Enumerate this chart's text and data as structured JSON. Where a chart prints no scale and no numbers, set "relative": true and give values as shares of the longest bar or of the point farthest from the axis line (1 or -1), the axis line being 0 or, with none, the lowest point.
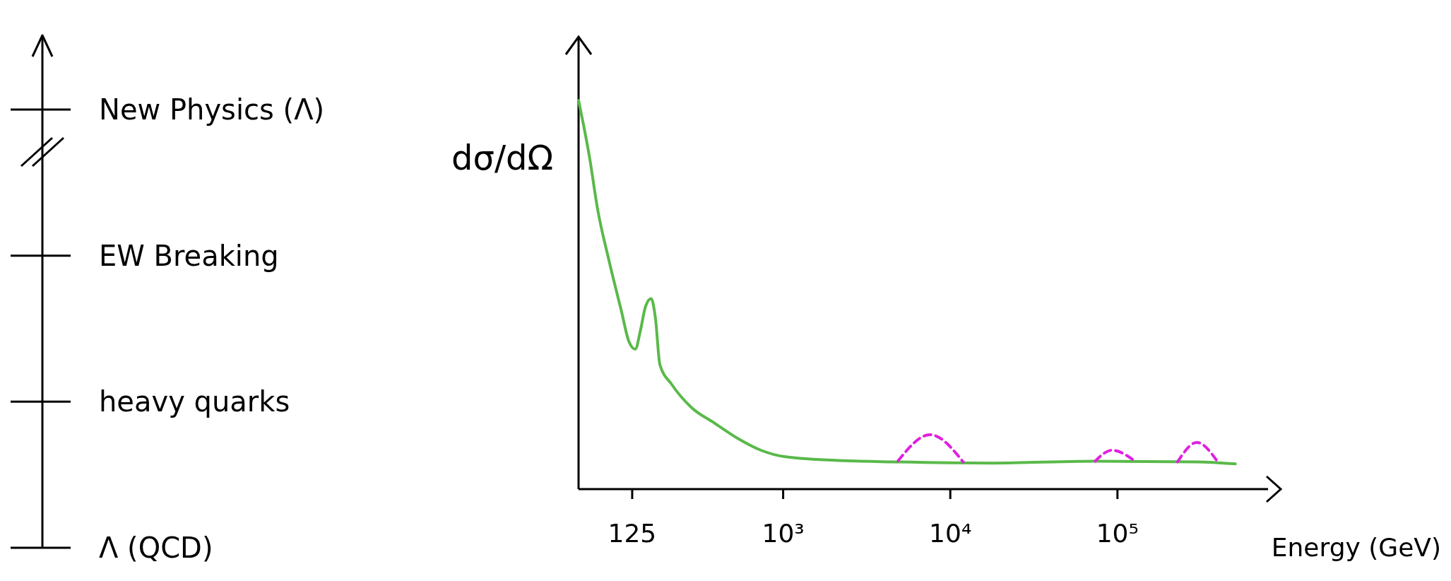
{
  "chart_data": [
    {
      "type": "other",
      "annotations": [
        "New Physics (Λ)",
        "EW Breaking",
        "heavy quarks",
        "Λ (QCD)"
      ]
    },
    {
      "type": "line",
      "xlabel": "Energy (GeV)",
      "ylabel": "dσ/dΩ",
      "relative": true,
      "log": "x",
      "xlim": [
        60,
        800000
      ],
      "xticks": [
        125,
        {
          "value": 1000,
          "label": "10³"
        },
        {
          "value": 10000,
          "label": "10⁴"
        },
        {
          "value": 100000,
          "label": "10⁵"
        }
      ],
      "series": [
        {
          "color": "#5ab94a",
          "line_style": "solid",
          "x": [
            60,
            70,
            78,
            91,
            108,
            120,
            131,
            141,
            151,
            163,
            173,
            184,
            216,
            284,
            390,
            540,
            740,
            1040,
            2350,
            4600,
            18000,
            74000,
            300000,
            510000
          ],
          "values": [
            1.0,
            0.85,
            0.72,
            0.59,
            0.46,
            0.38,
            0.36,
            0.41,
            0.47,
            0.49,
            0.44,
            0.32,
            0.27,
            0.21,
            0.17,
            0.13,
            0.1,
            0.083,
            0.073,
            0.07,
            0.067,
            0.072,
            0.07,
            0.065
          ]
        },
        {
          "color": "#e020e0",
          "line_style": "dashed",
          "x": [
            4900,
            7600,
            12000
          ],
          "values": [
            0.073,
            0.14,
            0.07
          ]
        },
        {
          "color": "#e020e0",
          "line_style": "dashed",
          "x": [
            74000,
            93000,
            130000
          ],
          "values": [
            0.072,
            0.1,
            0.07
          ]
        },
        {
          "color": "#e020e0",
          "line_style": "dashed",
          "x": [
            230000,
            300000,
            400000
          ],
          "values": [
            0.07,
            0.12,
            0.07
          ]
        }
      ]
    }
  ]
}
